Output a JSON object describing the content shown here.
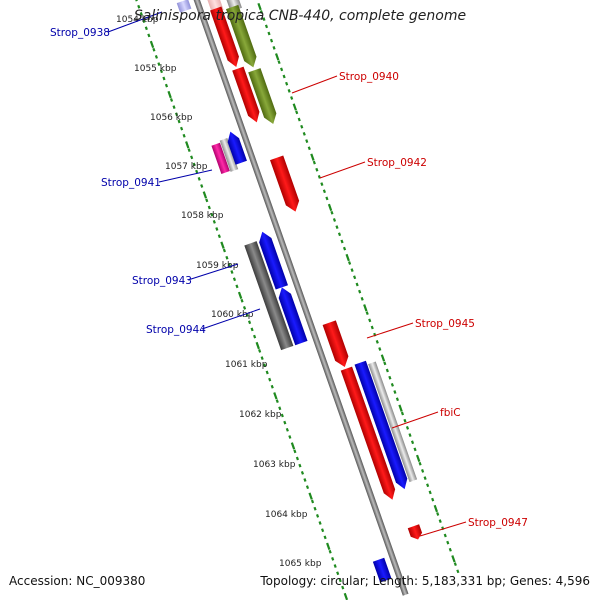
{
  "title": "Salinispora tropica CNB-440, complete genome",
  "accession": "Accession: NC_009380",
  "summary": "Topology: circular; Length: 5,183,331 bp; Genes: 4,596",
  "colors": {
    "backbone": "#8c8c8c",
    "tick": "#1f8a1f",
    "forward_label": "#cc0000",
    "reverse_label": "#0000aa"
  },
  "scale_labels": [
    "1054 kbp",
    "1055 kbp",
    "1056 kbp",
    "1057 kbp",
    "1058 kbp",
    "1059 kbp",
    "1060 kbp",
    "1061 kbp",
    "1062 kbp",
    "1063 kbp",
    "1064 kbp",
    "1065 kbp"
  ],
  "gene_labels": [
    {
      "id": "strop-0938",
      "text": "Strop_0938",
      "strand": "reverse"
    },
    {
      "id": "strop-0940",
      "text": "Strop_0940",
      "strand": "forward"
    },
    {
      "id": "strop-0942",
      "text": "Strop_0942",
      "strand": "forward"
    },
    {
      "id": "strop-0941",
      "text": "Strop_0941",
      "strand": "reverse"
    },
    {
      "id": "strop-0943",
      "text": "Strop_0943",
      "strand": "reverse"
    },
    {
      "id": "strop-0944",
      "text": "Strop_0944",
      "strand": "reverse"
    },
    {
      "id": "strop-0945",
      "text": "Strop_0945",
      "strand": "forward"
    },
    {
      "id": "fbic",
      "text": "fbiC",
      "strand": "forward"
    },
    {
      "id": "strop-0947",
      "text": "Strop_0947",
      "strand": "forward"
    }
  ]
}
